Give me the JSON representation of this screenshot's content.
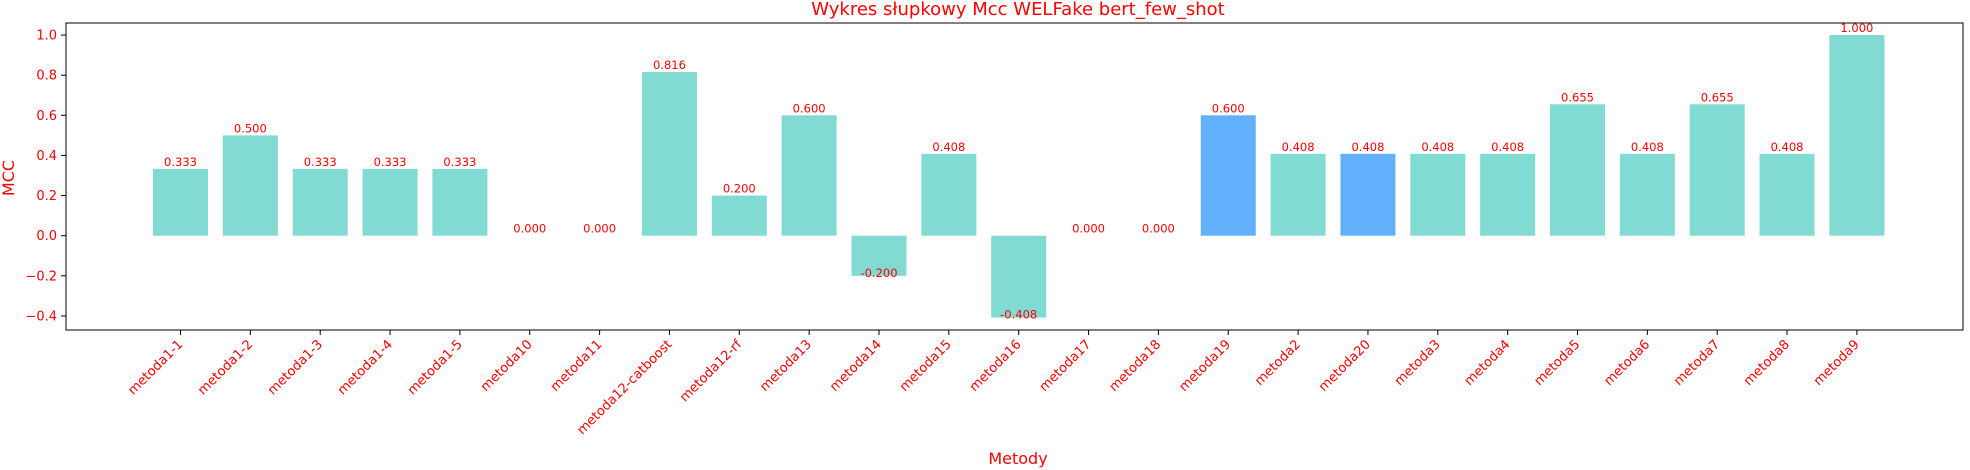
{
  "chart_data": {
    "type": "bar",
    "title": "Wykres słupkowy Mcc WELFake bert_few_shot",
    "xlabel": "Metody",
    "ylabel": "MCC",
    "ylim": [
      -0.47,
      1.06
    ],
    "yticks": [
      -0.4,
      -0.2,
      0.0,
      0.2,
      0.4,
      0.6,
      0.8,
      1.0
    ],
    "ytick_labels": [
      "−0.4",
      "−0.2",
      "0.0",
      "0.2",
      "0.4",
      "0.6",
      "0.8",
      "1.0"
    ],
    "grid": false,
    "colors": {
      "default": "#82dbd3",
      "highlight": "#62b0fb",
      "text": "#ff0000",
      "axis": "#000000"
    },
    "categories": [
      "metoda1-1",
      "metoda1-2",
      "metoda1-3",
      "metoda1-4",
      "metoda1-5",
      "metoda10",
      "metoda11",
      "metoda12-catboost",
      "metoda12-rf",
      "metoda13",
      "metoda14",
      "metoda15",
      "metoda16",
      "metoda17",
      "metoda18",
      "metoda19",
      "metoda2",
      "metoda20",
      "metoda3",
      "metoda4",
      "metoda5",
      "metoda6",
      "metoda7",
      "metoda8",
      "metoda9"
    ],
    "values": [
      0.333,
      0.5,
      0.333,
      0.333,
      0.333,
      0.0,
      0.0,
      0.816,
      0.2,
      0.6,
      -0.2,
      0.408,
      -0.408,
      0.0,
      0.0,
      0.6,
      0.408,
      0.408,
      0.408,
      0.408,
      0.655,
      0.408,
      0.655,
      0.408,
      1.0
    ],
    "value_labels": [
      "0.333",
      "0.500",
      "0.333",
      "0.333",
      "0.333",
      "0.000",
      "0.000",
      "0.816",
      "0.200",
      "0.600",
      "-0.200",
      "0.408",
      "-0.408",
      "0.000",
      "0.000",
      "0.600",
      "0.408",
      "0.408",
      "0.408",
      "0.408",
      "0.655",
      "0.408",
      "0.655",
      "0.408",
      "1.000"
    ],
    "highlighted": [
      "metoda19",
      "metoda20"
    ]
  }
}
